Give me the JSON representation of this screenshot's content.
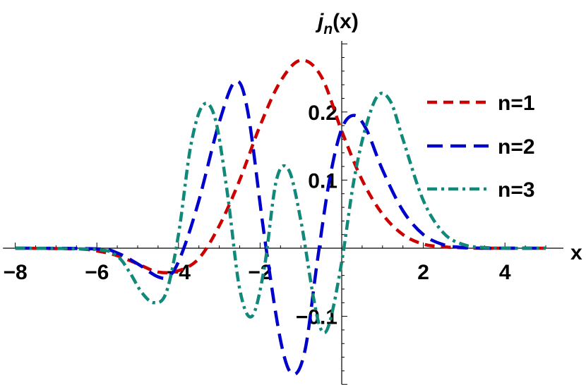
{
  "chart_data": {
    "type": "line",
    "xlabel": "x",
    "ylabel": {
      "base": "j",
      "sub": "n",
      "arg": "(x)"
    },
    "xlim": [
      -8.3,
      5.5
    ],
    "ylim": [
      -0.21,
      0.32
    ],
    "x_ticks": [
      {
        "value": -8,
        "label": "−8"
      },
      {
        "value": -6,
        "label": "−6"
      },
      {
        "value": -4,
        "label": "−4"
      },
      {
        "value": -2,
        "label": "−2"
      },
      {
        "value": 2,
        "label": "2"
      },
      {
        "value": 4,
        "label": "4"
      }
    ],
    "y_ticks": [
      {
        "value": -0.1,
        "label": "−0.1"
      },
      {
        "value": 0.1,
        "label": "0.1"
      },
      {
        "value": 0.2,
        "label": "0.2"
      }
    ],
    "legend_position": "right",
    "series": [
      {
        "name": "n=1",
        "color": "#cc0000",
        "dash": "dashed",
        "x": [
          -8,
          -6.5,
          -6,
          -5.5,
          -5,
          -4.5,
          -4,
          -3.5,
          -3,
          -2.5,
          -2,
          -1.5,
          -1,
          -0.5,
          0,
          0.5,
          1,
          1.5,
          2,
          2.5,
          3,
          3.5,
          4,
          5
        ],
        "y": [
          0,
          -0.001,
          -0.004,
          -0.011,
          -0.023,
          -0.035,
          -0.033,
          -0.015,
          0.033,
          0.1,
          0.18,
          0.245,
          0.276,
          0.252,
          0.172,
          0.1,
          0.05,
          0.02,
          0.006,
          0.002,
          0.0005,
          0,
          0,
          0
        ]
      },
      {
        "name": "n=2",
        "color": "#0000cc",
        "dash": "long-dashed",
        "x": [
          -8,
          -6,
          -5.5,
          -5,
          -4.5,
          -4.2,
          -3.9,
          -3.5,
          -3,
          -2.6,
          -2.3,
          -1.9,
          -1.5,
          -1.2,
          -0.9,
          -0.6,
          -0.3,
          0,
          0.3,
          0.6,
          1,
          1.5,
          2,
          2.5,
          3,
          3.5,
          4,
          5
        ],
        "y": [
          0,
          -0.001,
          -0.007,
          -0.023,
          -0.042,
          -0.04,
          -0.005,
          0.07,
          0.185,
          0.245,
          0.2,
          0.02,
          -0.135,
          -0.185,
          -0.15,
          -0.02,
          0.1,
          0.175,
          0.195,
          0.175,
          0.115,
          0.055,
          0.02,
          0.005,
          0.001,
          0,
          0,
          0
        ]
      },
      {
        "name": "n=3",
        "color": "#11897a",
        "dash": "dash-dot",
        "x": [
          -8,
          -6,
          -5.5,
          -5.2,
          -4.9,
          -4.6,
          -4.3,
          -4.0,
          -3.7,
          -3.4,
          -3.1,
          -2.8,
          -2.5,
          -2.2,
          -1.9,
          -1.6,
          -1.3,
          -1.0,
          -0.7,
          -0.5,
          -0.3,
          0,
          0.3,
          0.6,
          0.9,
          1.2,
          1.5,
          2,
          2.5,
          3,
          3.5,
          4,
          5
        ],
        "y": [
          0,
          -0.002,
          -0.012,
          -0.035,
          -0.065,
          -0.08,
          -0.065,
          0.02,
          0.15,
          0.21,
          0.19,
          0.08,
          -0.06,
          -0.1,
          -0.03,
          0.1,
          0.115,
          0.04,
          -0.07,
          -0.12,
          -0.11,
          -0.02,
          0.1,
          0.18,
          0.225,
          0.215,
          0.16,
          0.07,
          0.022,
          0.005,
          0.001,
          0,
          0
        ]
      }
    ]
  }
}
